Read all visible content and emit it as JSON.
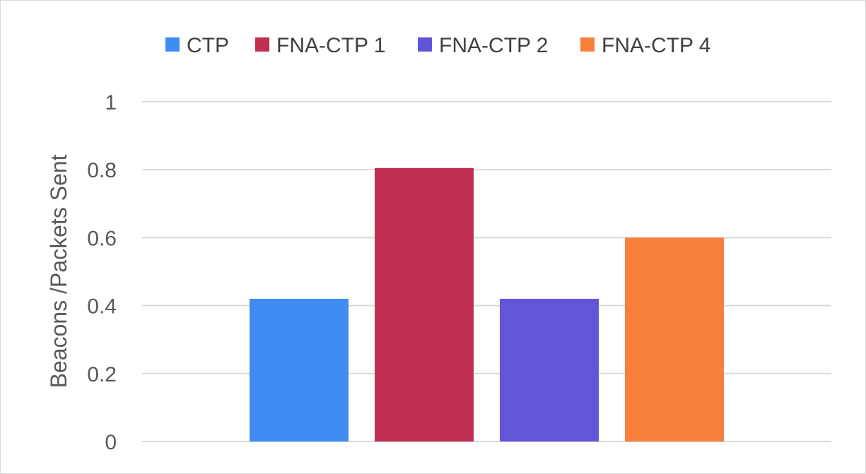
{
  "chart_data": {
    "type": "bar",
    "title": "",
    "xlabel": "",
    "ylabel": "Beacons /Packets Sent",
    "ylim": [
      0,
      1
    ],
    "yticks": [
      0,
      0.2,
      0.4,
      0.6,
      0.8,
      1
    ],
    "ytick_labels": [
      "0",
      "0.2",
      "0.4",
      "0.6",
      "0.8",
      "1"
    ],
    "grid": true,
    "legend_position": "top",
    "categories": [
      ""
    ],
    "series": [
      {
        "name": "CTP",
        "values": [
          0.42
        ],
        "color": "#3f8cf2"
      },
      {
        "name": "FNA-CTP 1",
        "values": [
          0.805
        ],
        "color": "#c12f52"
      },
      {
        "name": "FNA-CTP 2",
        "values": [
          0.42
        ],
        "color": "#6355d8"
      },
      {
        "name": "FNA-CTP 4",
        "values": [
          0.6
        ],
        "color": "#f8803b"
      }
    ]
  }
}
